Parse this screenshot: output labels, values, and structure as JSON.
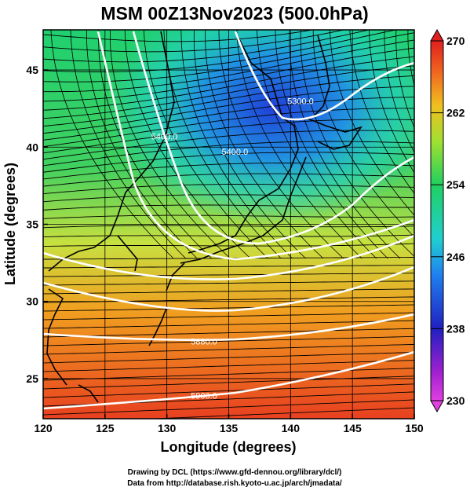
{
  "title": "MSM 00Z13Nov2023 (500.0hPa)",
  "x_axis": {
    "label": "Longitude (degrees)",
    "range": [
      120,
      150
    ],
    "ticks": [
      "120",
      "125",
      "130",
      "135",
      "140",
      "145",
      "150"
    ]
  },
  "y_axis": {
    "label": "Latitude (degrees)",
    "range": [
      22.4,
      47.6
    ],
    "ticks": [
      "25",
      "30",
      "35",
      "40",
      "45"
    ]
  },
  "colorbar": {
    "range": [
      230,
      270
    ],
    "ticks": [
      "270",
      "262",
      "254",
      "246",
      "238",
      "230"
    ],
    "colors": [
      "#c000c0",
      "#3030d0",
      "#2060e8",
      "#20c8d0",
      "#20d070",
      "#40d040",
      "#e8e020",
      "#f08020",
      "#e03020"
    ]
  },
  "contours": [
    {
      "label": "5300.0",
      "lon": 140.8,
      "lat": 42.8
    },
    {
      "label": "5400.0",
      "lon": 135.5,
      "lat": 39.5
    },
    {
      "label": "5400.0",
      "lon": 129.8,
      "lat": 40.5
    },
    {
      "label": "5880.0",
      "lon": 133.0,
      "lat": 27.2
    },
    {
      "label": "5900.0",
      "lon": 133.0,
      "lat": 23.7
    }
  ],
  "credits": {
    "line1": "Drawing by DCL (https://www.gfd-dennou.org/library/dcl/)",
    "line2": "Data from http://database.rish.kyoto-u.ac.jp/arch/jmadata/"
  }
}
